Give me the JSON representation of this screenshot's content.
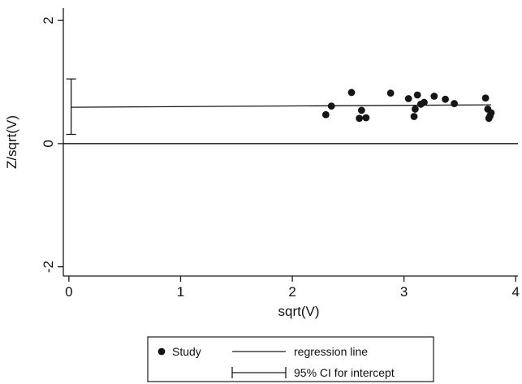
{
  "chart_data": {
    "type": "scatter",
    "title": "",
    "xlabel": "sqrt(V)",
    "ylabel": "Z/sqrt(V)",
    "xlim": [
      -0.05,
      4.02
    ],
    "ylim": [
      -2.15,
      2.2
    ],
    "x_ticks": [
      0,
      1,
      2,
      3,
      4
    ],
    "x_tick_labels": [
      "0",
      "1",
      "2",
      "3",
      "4"
    ],
    "y_ticks": [
      -2,
      0,
      2
    ],
    "y_tick_labels": [
      "-2",
      "0",
      "2"
    ],
    "reference_line_y": 0,
    "grid": false,
    "legend_position": "bottom-center",
    "series": [
      {
        "name": "Study",
        "kind": "points",
        "x": [
          2.3,
          2.35,
          2.53,
          2.6,
          2.62,
          2.66,
          2.88,
          3.04,
          3.09,
          3.1,
          3.12,
          3.15,
          3.18,
          3.27,
          3.37,
          3.45,
          3.73,
          3.75,
          3.76,
          3.77,
          3.78
        ],
        "y": [
          0.47,
          0.61,
          0.83,
          0.41,
          0.54,
          0.42,
          0.82,
          0.73,
          0.44,
          0.56,
          0.79,
          0.64,
          0.67,
          0.77,
          0.72,
          0.65,
          0.74,
          0.56,
          0.41,
          0.45,
          0.5
        ]
      },
      {
        "name": "regression line",
        "kind": "line",
        "x": [
          0.02,
          3.78
        ],
        "y": [
          0.59,
          0.63
        ]
      },
      {
        "name": "95% CI for intercept",
        "kind": "errorbar",
        "x": 0.02,
        "low": 0.15,
        "high": 1.05
      }
    ]
  }
}
